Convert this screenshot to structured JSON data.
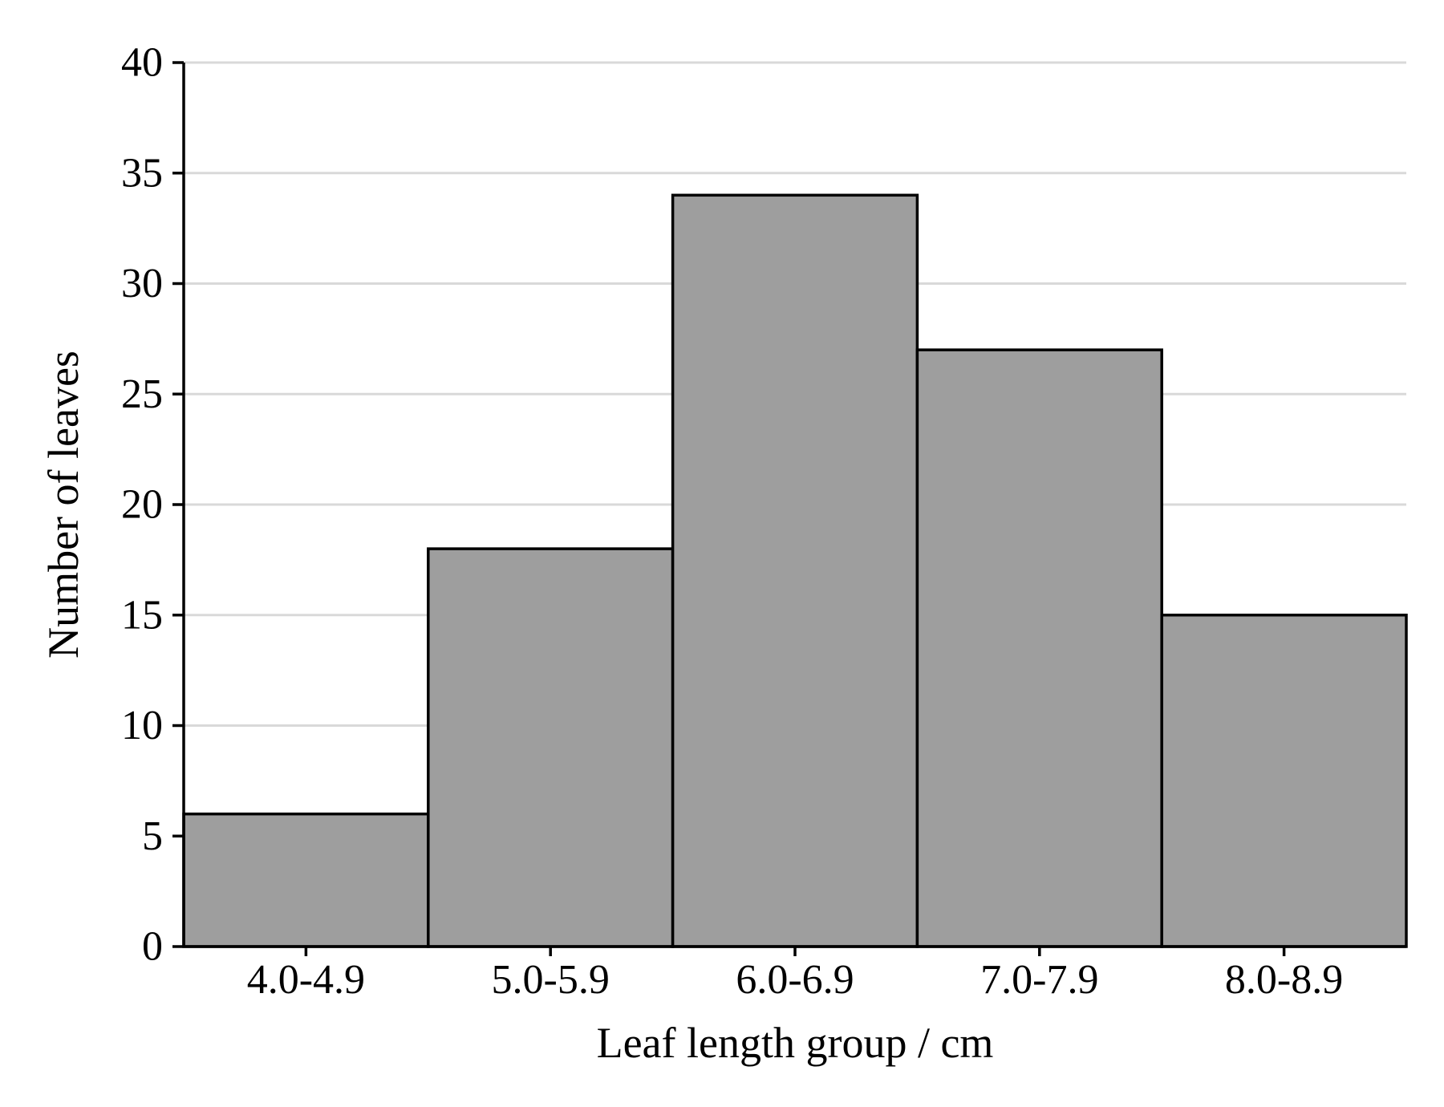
{
  "chart_data": {
    "type": "bar",
    "xlabel": "Leaf length group / cm",
    "ylabel": "Number of leaves",
    "categories": [
      "4.0-4.9",
      "5.0-5.9",
      "6.0-6.9",
      "7.0-7.9",
      "8.0-8.9"
    ],
    "values": [
      6,
      18,
      34,
      27,
      15
    ],
    "ylim": [
      0,
      40
    ],
    "yticks": [
      0,
      5,
      10,
      15,
      20,
      25,
      30,
      35,
      40
    ],
    "grid": "horizontal",
    "colors": {
      "bar_fill": "#9e9e9e",
      "bar_edge": "#000000",
      "grid": "#d9d9d9"
    }
  }
}
